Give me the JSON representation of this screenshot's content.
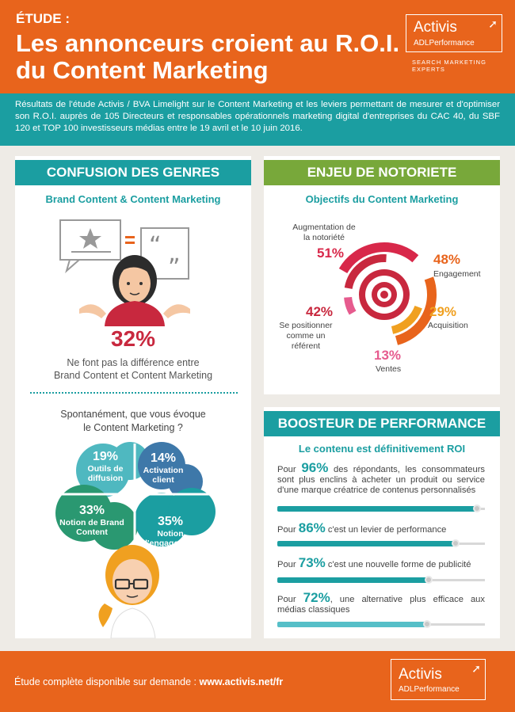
{
  "header": {
    "tag": "ÉTUDE :",
    "title_line1": "Les annonceurs croient au R.O.I.",
    "title_line2": "du Content Marketing",
    "logo_name": "Activis",
    "logo_sub": "ADLPerformance",
    "logo_tagline": "SEARCH MARKETING EXPERTS"
  },
  "intro": "Résultats de l'étude Activis / BVA Limelight sur le Content Marketing et les leviers permettant de mesurer et d'optimiser son R.O.I. auprès de 105 Directeurs et responsables opérationnels marketing digital d'entreprises du CAC 40, du SBF 120 et TOP 100 investisseurs médias entre le 19 avril et le 10  juin 2016.",
  "confusion": {
    "title": "CONFUSION DES GENRES",
    "subtitle": "Brand Content & Content Marketing",
    "percent": "32%",
    "caption1": "Ne font pas la différence entre",
    "caption2": "Brand Content et Content Marketing",
    "question1": "Spontanément, que vous évoque",
    "question2": "le Content Marketing ?",
    "cloud": [
      {
        "pct": "19%",
        "label": "Outils de diffusion",
        "value": 19,
        "color": "#4fb8c0"
      },
      {
        "pct": "14%",
        "label": "Activation client",
        "value": 14,
        "color": "#3e78a9"
      },
      {
        "pct": "33%",
        "label": "Notion de Brand Content",
        "value": 33,
        "color": "#2a9871"
      },
      {
        "pct": "35%",
        "label": "Notion d'engagement",
        "value": 35,
        "color": "#1b9ea1"
      }
    ]
  },
  "notoriete": {
    "title": "ENJEU DE NOTORIETE",
    "subtitle": "Objectifs du Content Marketing",
    "items": [
      {
        "pct": "51%",
        "label": "Augmentation de la notoriété",
        "value": 51,
        "color": "#d8284a"
      },
      {
        "pct": "48%",
        "label": "Engagement",
        "value": 48,
        "color": "#e8641c"
      },
      {
        "pct": "29%",
        "label": "Acquisition",
        "value": 29,
        "color": "#f0a020"
      },
      {
        "pct": "13%",
        "label": "Ventes",
        "value": 13,
        "color": "#e65b8e"
      },
      {
        "pct": "42%",
        "label": "Se positionner comme un référent",
        "value": 42,
        "color": "#c8283e"
      }
    ]
  },
  "booster": {
    "title": "BOOSTEUR DE PERFORMANCE",
    "subtitle": "Le contenu est définitivement ROI",
    "bars": [
      {
        "pre": "Pour",
        "pct": "96%",
        "text": "des répondants, les consommateurs sont plus enclins à acheter un produit ou service d'une marque créatrice de contenus personnalisés",
        "value": 96,
        "color": "#1b9ea1"
      },
      {
        "pre": "Pour",
        "pct": "86%",
        "text": "c'est un levier de performance",
        "value": 86,
        "color": "#1b9ea1"
      },
      {
        "pre": "Pour",
        "pct": "73%",
        "text": "c'est une nouvelle forme de publicité",
        "value": 73,
        "color": "#1b9ea1"
      },
      {
        "pre": "Pour",
        "pct": "72%",
        "text": ", une alternative plus efficace aux médias classiques",
        "value": 72,
        "color": "#56bfc8"
      }
    ]
  },
  "footer": {
    "text": "Étude complète disponible sur demande : ",
    "link": "www.activis.net/fr",
    "logo_name": "Activis",
    "logo_sub": "ADLPerformance"
  }
}
